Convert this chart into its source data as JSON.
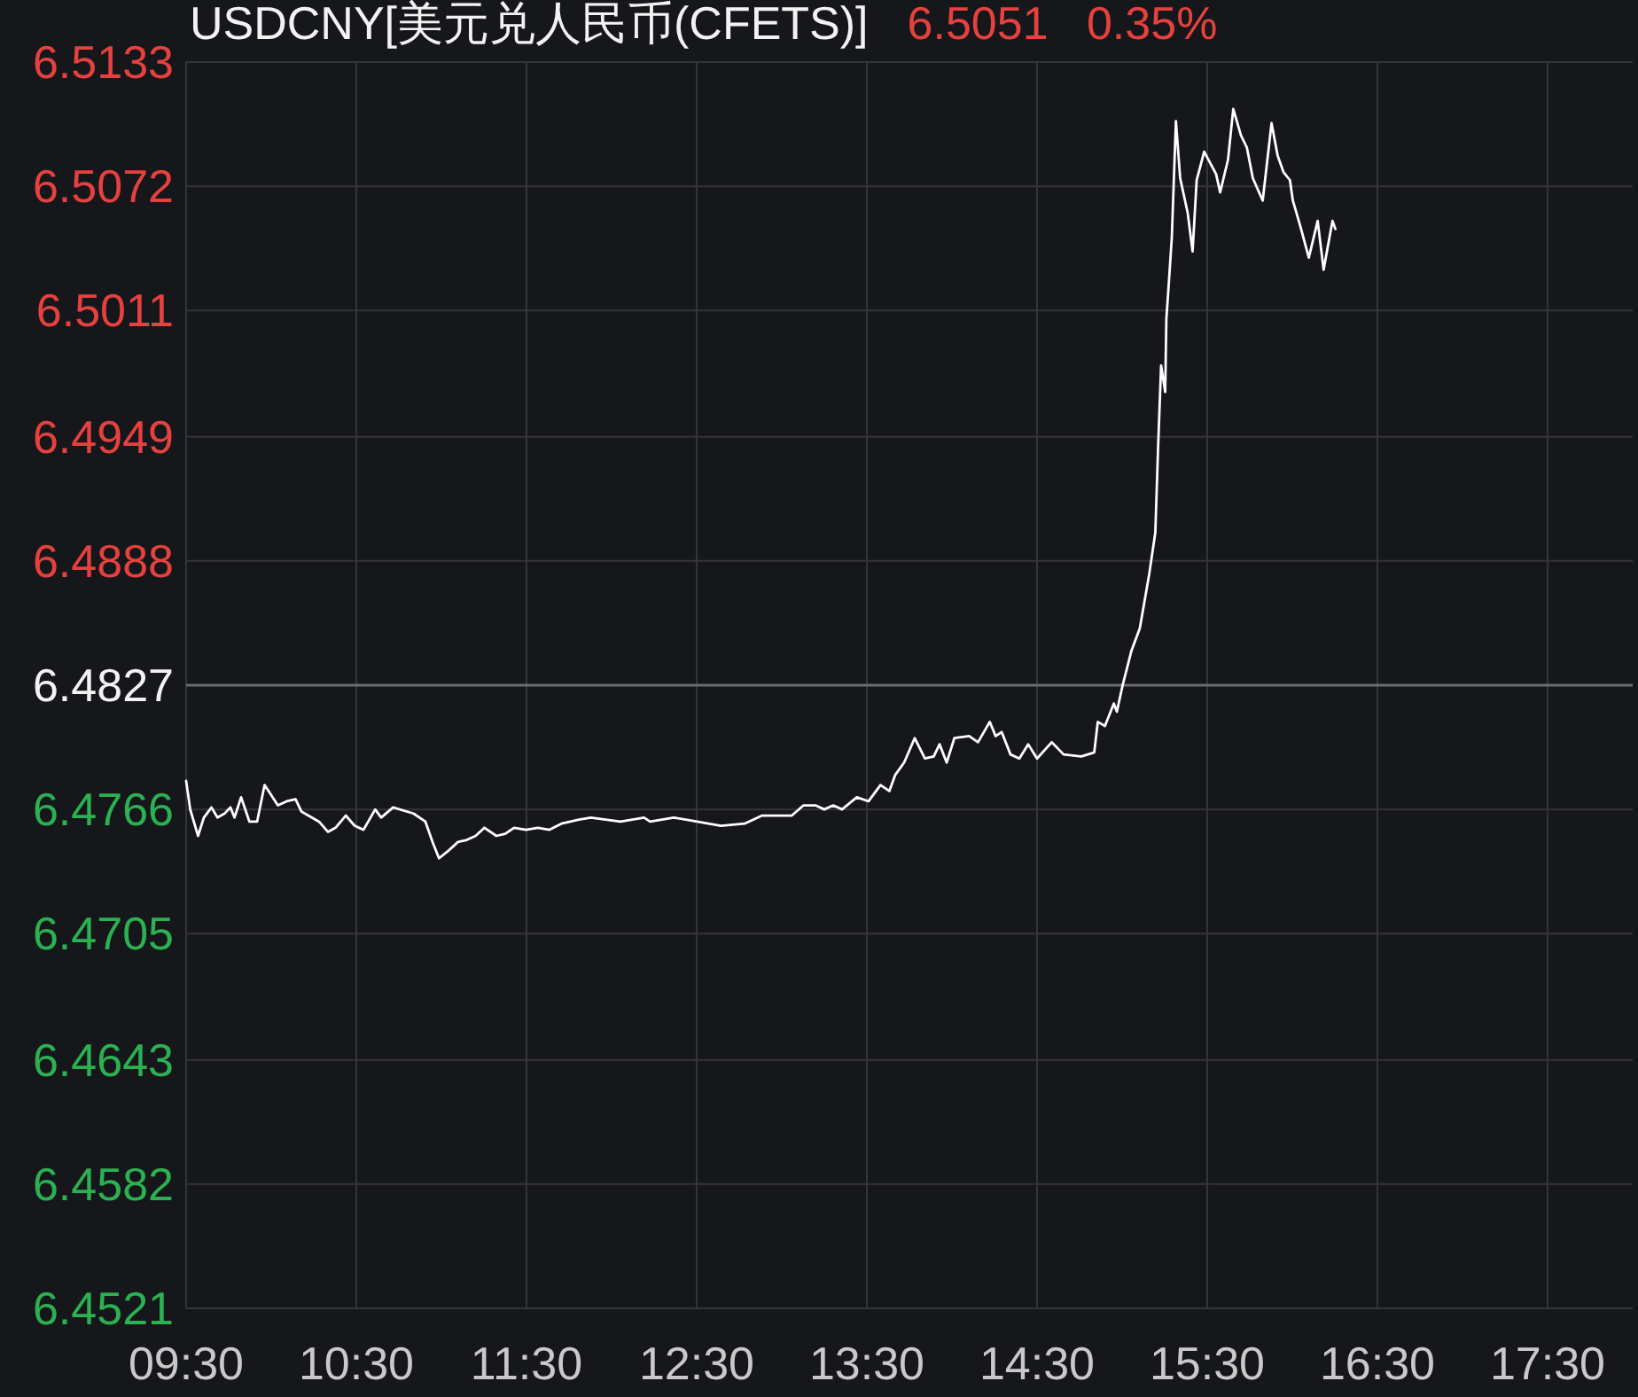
{
  "chart_data": {
    "type": "line",
    "title": "USDCNY[美元兑人民币(CFETS)]",
    "subtitle": "6.5051   0.35%",
    "x": [
      9.5,
      9.524,
      9.57,
      9.604,
      9.649,
      9.684,
      9.726,
      9.76,
      9.784,
      9.823,
      9.872,
      9.917,
      9.961,
      10.039,
      10.091,
      10.143,
      10.177,
      10.281,
      10.333,
      10.378,
      10.438,
      10.49,
      10.542,
      10.611,
      10.646,
      10.716,
      10.836,
      10.906,
      10.948,
      10.986,
      11.045,
      11.097,
      11.149,
      11.201,
      11.253,
      11.323,
      11.375,
      11.427,
      11.497,
      11.566,
      11.635,
      11.705,
      11.809,
      11.878,
      12.052,
      12.191,
      12.226,
      12.365,
      12.503,
      12.643,
      12.781,
      12.885,
      13.059,
      13.128,
      13.198,
      13.25,
      13.302,
      13.354,
      13.441,
      13.51,
      13.58,
      13.632,
      13.667,
      13.719,
      13.781,
      13.841,
      13.893,
      13.927,
      13.969,
      14.014,
      14.101,
      14.153,
      14.222,
      14.257,
      14.292,
      14.344,
      14.396,
      14.448,
      14.5,
      14.586,
      14.656,
      14.76,
      14.836,
      14.857,
      14.899,
      14.951,
      14.969,
      15.003,
      15.055,
      15.104,
      15.16,
      15.195,
      15.211,
      15.229,
      15.253,
      15.26,
      15.274,
      15.292,
      15.316,
      15.341,
      15.385,
      15.414,
      15.438,
      15.482,
      15.552,
      15.576,
      15.622,
      15.653,
      15.698,
      15.733,
      15.768,
      15.826,
      15.878,
      15.914,
      15.948,
      15.986,
      16.003,
      16.045,
      16.097,
      16.149,
      16.184,
      16.236,
      16.253
    ],
    "series": [
      {
        "color": "#ffffff",
        "values": [
          6.478,
          6.4766,
          6.4753,
          6.4762,
          6.4767,
          6.4762,
          6.4764,
          6.4767,
          6.4762,
          6.4772,
          6.476,
          6.476,
          6.4778,
          6.4768,
          6.477,
          6.4771,
          6.4765,
          6.476,
          6.4755,
          6.4757,
          6.4763,
          6.4758,
          6.4756,
          6.4766,
          6.4762,
          6.4767,
          6.4764,
          6.476,
          6.475,
          6.4742,
          6.4746,
          6.475,
          6.4751,
          6.4753,
          6.4757,
          6.4753,
          6.4754,
          6.4757,
          6.4756,
          6.4757,
          6.4756,
          6.4759,
          6.4761,
          6.4762,
          6.476,
          6.4762,
          6.476,
          6.4762,
          6.476,
          6.4758,
          6.4759,
          6.4763,
          6.4763,
          6.4768,
          6.4768,
          6.4766,
          6.4768,
          6.4766,
          6.4772,
          6.477,
          6.4778,
          6.4775,
          6.4783,
          6.4789,
          6.4801,
          6.4791,
          6.4792,
          6.4798,
          6.4789,
          6.4801,
          6.4802,
          6.4799,
          6.4809,
          6.4802,
          6.4804,
          6.4793,
          6.4791,
          6.4798,
          6.4791,
          6.4799,
          6.4793,
          6.4792,
          6.4794,
          6.4809,
          6.4807,
          6.4818,
          6.4814,
          6.4827,
          6.4844,
          6.4855,
          6.4882,
          6.4902,
          6.4943,
          6.4984,
          6.4971,
          6.5007,
          6.5024,
          6.5047,
          6.5104,
          6.5076,
          6.5059,
          6.504,
          6.5075,
          6.5089,
          6.5078,
          6.5069,
          6.5085,
          6.511,
          6.5097,
          6.5091,
          6.5076,
          6.5065,
          6.5103,
          6.5087,
          6.5079,
          6.5075,
          6.5065,
          6.5053,
          6.5037,
          6.5055,
          6.5031,
          6.5055,
          6.5051
        ]
      }
    ],
    "xlim": [
      9.5,
      18.0
    ],
    "xticks": [
      {
        "value": 9.5,
        "label": "09:30"
      },
      {
        "value": 10.5,
        "label": "10:30"
      },
      {
        "value": 11.5,
        "label": "11:30"
      },
      {
        "value": 12.5,
        "label": "12:30"
      },
      {
        "value": 13.5,
        "label": "13:30"
      },
      {
        "value": 14.5,
        "label": "14:30"
      },
      {
        "value": 15.5,
        "label": "15:30"
      },
      {
        "value": 16.5,
        "label": "16:30"
      },
      {
        "value": 17.5,
        "label": "17:30"
      }
    ],
    "ylim": [
      6.4521,
      6.5133
    ],
    "yticks": [
      6.4521,
      6.4582,
      6.4643,
      6.4705,
      6.4766,
      6.4827,
      6.4888,
      6.4949,
      6.5011,
      6.5072,
      6.5133
    ],
    "ref_lines": [
      {
        "axis": "y",
        "value": 6.4827,
        "color": "#6b6c70"
      }
    ],
    "grid": true
  }
}
